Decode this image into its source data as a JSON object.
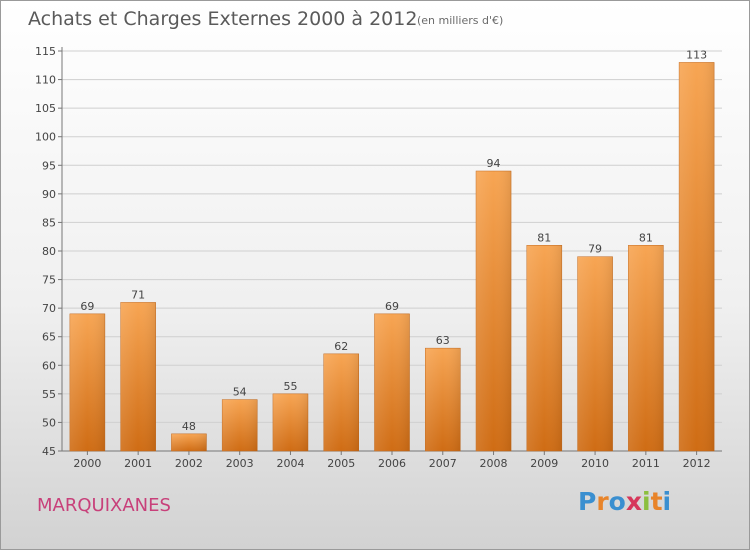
{
  "chart_data": {
    "type": "bar",
    "title": "Achats et Charges Externes 2000 à 2012",
    "unit": "(en milliers d'€)",
    "categories": [
      "2000",
      "2001",
      "2002",
      "2003",
      "2004",
      "2005",
      "2006",
      "2007",
      "2008",
      "2009",
      "2010",
      "2011",
      "2012"
    ],
    "values": [
      69,
      71,
      48,
      54,
      55,
      62,
      69,
      63,
      94,
      81,
      79,
      81,
      113
    ],
    "ylim": [
      45,
      115
    ],
    "yticks": [
      45,
      50,
      55,
      60,
      65,
      70,
      75,
      80,
      85,
      90,
      95,
      100,
      105,
      110,
      115
    ],
    "grid": true,
    "bar_color_top": "#f7a553",
    "bar_color_bottom": "#cf6c14"
  },
  "footer": {
    "location": "MARQUIXANES",
    "brand": "Proxiti"
  },
  "colors": {
    "location": "#c8407a",
    "brand_letters": [
      "#3a8fd0",
      "#e8842a",
      "#3a8fd0",
      "#d6375a",
      "#8cbf3f",
      "#e8842a",
      "#3a8fd0"
    ]
  }
}
